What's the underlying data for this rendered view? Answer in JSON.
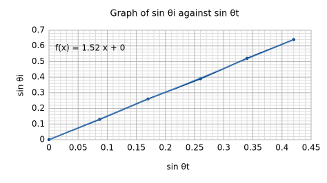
{
  "chart_data": {
    "type": "scatter",
    "title": "Graph of sin θi against sin θt",
    "x_label": "sin θt",
    "y_label": "sin θi",
    "series": [
      {
        "name": "sin θi",
        "color": "#004586",
        "x": [
          0,
          0.087,
          0.17,
          0.26,
          0.34,
          0.42
        ],
        "values": [
          0,
          0.13,
          0.26,
          0.39,
          0.52,
          0.64
        ]
      }
    ],
    "trendline": {
      "label": "f(x) = 1.52 x + 0",
      "slope": 1.52,
      "intercept": 0,
      "color": "#4a7ebb"
    },
    "xlim": [
      0,
      0.45
    ],
    "xticks": [
      0,
      0.05,
      0.1,
      0.15,
      0.2,
      0.25,
      0.3,
      0.35,
      0.4,
      0.45
    ],
    "ylim": [
      0,
      0.7
    ],
    "yticks": [
      0,
      0.1,
      0.2,
      0.3,
      0.4,
      0.5,
      0.6,
      0.7
    ],
    "grid": true,
    "minor_grid": true
  }
}
